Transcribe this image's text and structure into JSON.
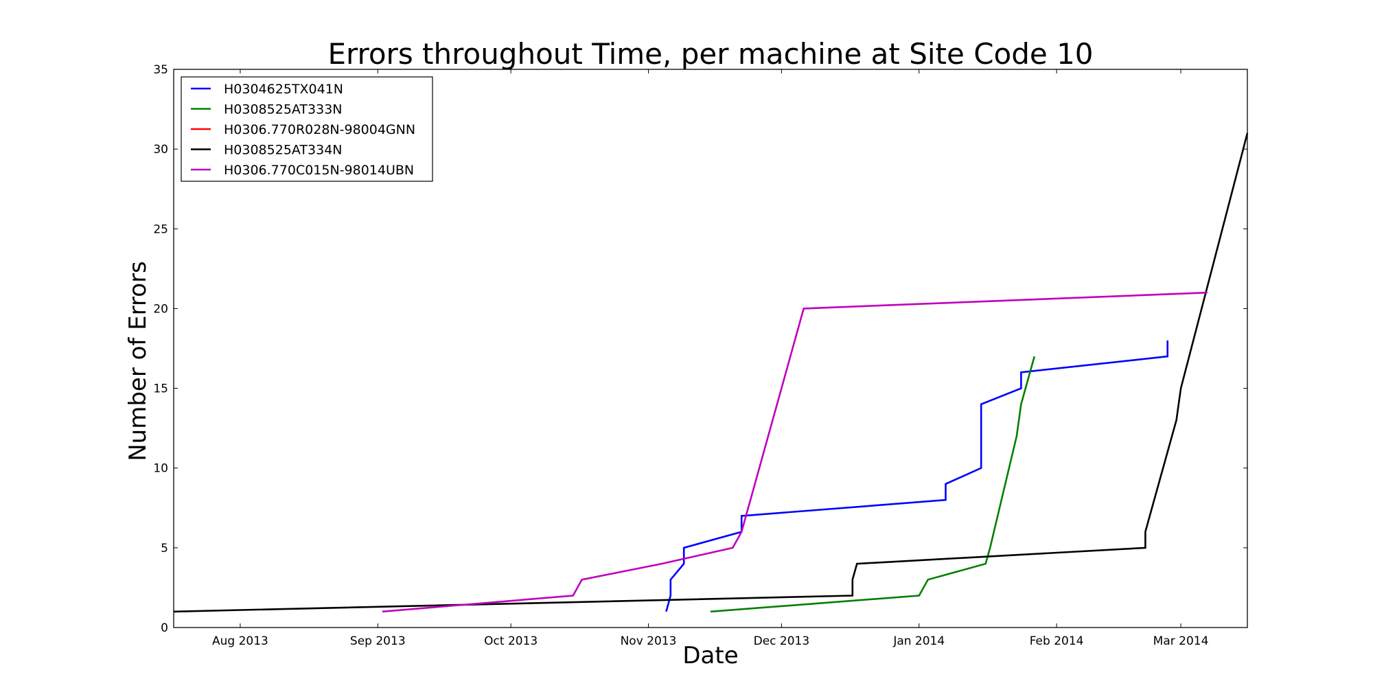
{
  "chart_data": {
    "type": "line",
    "title": "Errors throughout Time, per machine at Site Code 10",
    "xlabel": "Date",
    "ylabel": "Number of Errors",
    "xlim": [
      "2013-07-17",
      "2014-03-16"
    ],
    "ylim": [
      0,
      35
    ],
    "x_ticks": [
      {
        "date": "2013-08-01",
        "label": "Aug 2013"
      },
      {
        "date": "2013-09-01",
        "label": "Sep 2013"
      },
      {
        "date": "2013-10-01",
        "label": "Oct 2013"
      },
      {
        "date": "2013-11-01",
        "label": "Nov 2013"
      },
      {
        "date": "2013-12-01",
        "label": "Dec 2013"
      },
      {
        "date": "2014-01-01",
        "label": "Jan 2014"
      },
      {
        "date": "2014-02-01",
        "label": "Feb 2014"
      },
      {
        "date": "2014-03-01",
        "label": "Mar 2014"
      }
    ],
    "y_ticks": [
      0,
      5,
      10,
      15,
      20,
      25,
      30,
      35
    ],
    "grid": false,
    "legend": "top-left",
    "series": [
      {
        "name": "H0304625TX041N",
        "color": "#0000ff",
        "points": [
          [
            "2013-11-05",
            1
          ],
          [
            "2013-11-06",
            2
          ],
          [
            "2013-11-06",
            3
          ],
          [
            "2013-11-09",
            4
          ],
          [
            "2013-11-09",
            5
          ],
          [
            "2013-11-22",
            6
          ],
          [
            "2013-11-22",
            7
          ],
          [
            "2014-01-07",
            8
          ],
          [
            "2014-01-07",
            9
          ],
          [
            "2014-01-15",
            10
          ],
          [
            "2014-01-15",
            14
          ],
          [
            "2014-01-24",
            15
          ],
          [
            "2014-01-24",
            16
          ],
          [
            "2014-02-26",
            17
          ],
          [
            "2014-02-26",
            18
          ]
        ]
      },
      {
        "name": "H0308525AT333N",
        "color": "#008000",
        "points": [
          [
            "2013-11-15",
            1
          ],
          [
            "2014-01-01",
            2
          ],
          [
            "2014-01-03",
            3
          ],
          [
            "2014-01-16",
            4
          ],
          [
            "2014-01-17",
            5
          ],
          [
            "2014-01-23",
            12
          ],
          [
            "2014-01-24",
            14
          ],
          [
            "2014-01-27",
            17
          ]
        ]
      },
      {
        "name": "H0306.770R028N-98004GNN",
        "color": "#ff0000",
        "points": []
      },
      {
        "name": "H0308525AT334N",
        "color": "#000000",
        "points": [
          [
            "2013-07-17",
            1
          ],
          [
            "2013-12-17",
            2
          ],
          [
            "2013-12-17",
            3
          ],
          [
            "2013-12-18",
            4
          ],
          [
            "2014-02-21",
            5
          ],
          [
            "2014-02-21",
            6
          ],
          [
            "2014-02-22",
            7
          ],
          [
            "2014-02-28",
            13
          ],
          [
            "2014-03-01",
            15
          ],
          [
            "2014-03-16",
            31
          ]
        ]
      },
      {
        "name": "H0306.770C015N-98014UBN",
        "color": "#bf00bf",
        "points": [
          [
            "2013-09-02",
            1
          ],
          [
            "2013-10-15",
            2
          ],
          [
            "2013-10-17",
            3
          ],
          [
            "2013-11-04",
            4
          ],
          [
            "2013-11-20",
            5
          ],
          [
            "2013-11-22",
            6
          ],
          [
            "2013-12-06",
            20
          ],
          [
            "2014-03-07",
            21
          ]
        ]
      }
    ]
  }
}
